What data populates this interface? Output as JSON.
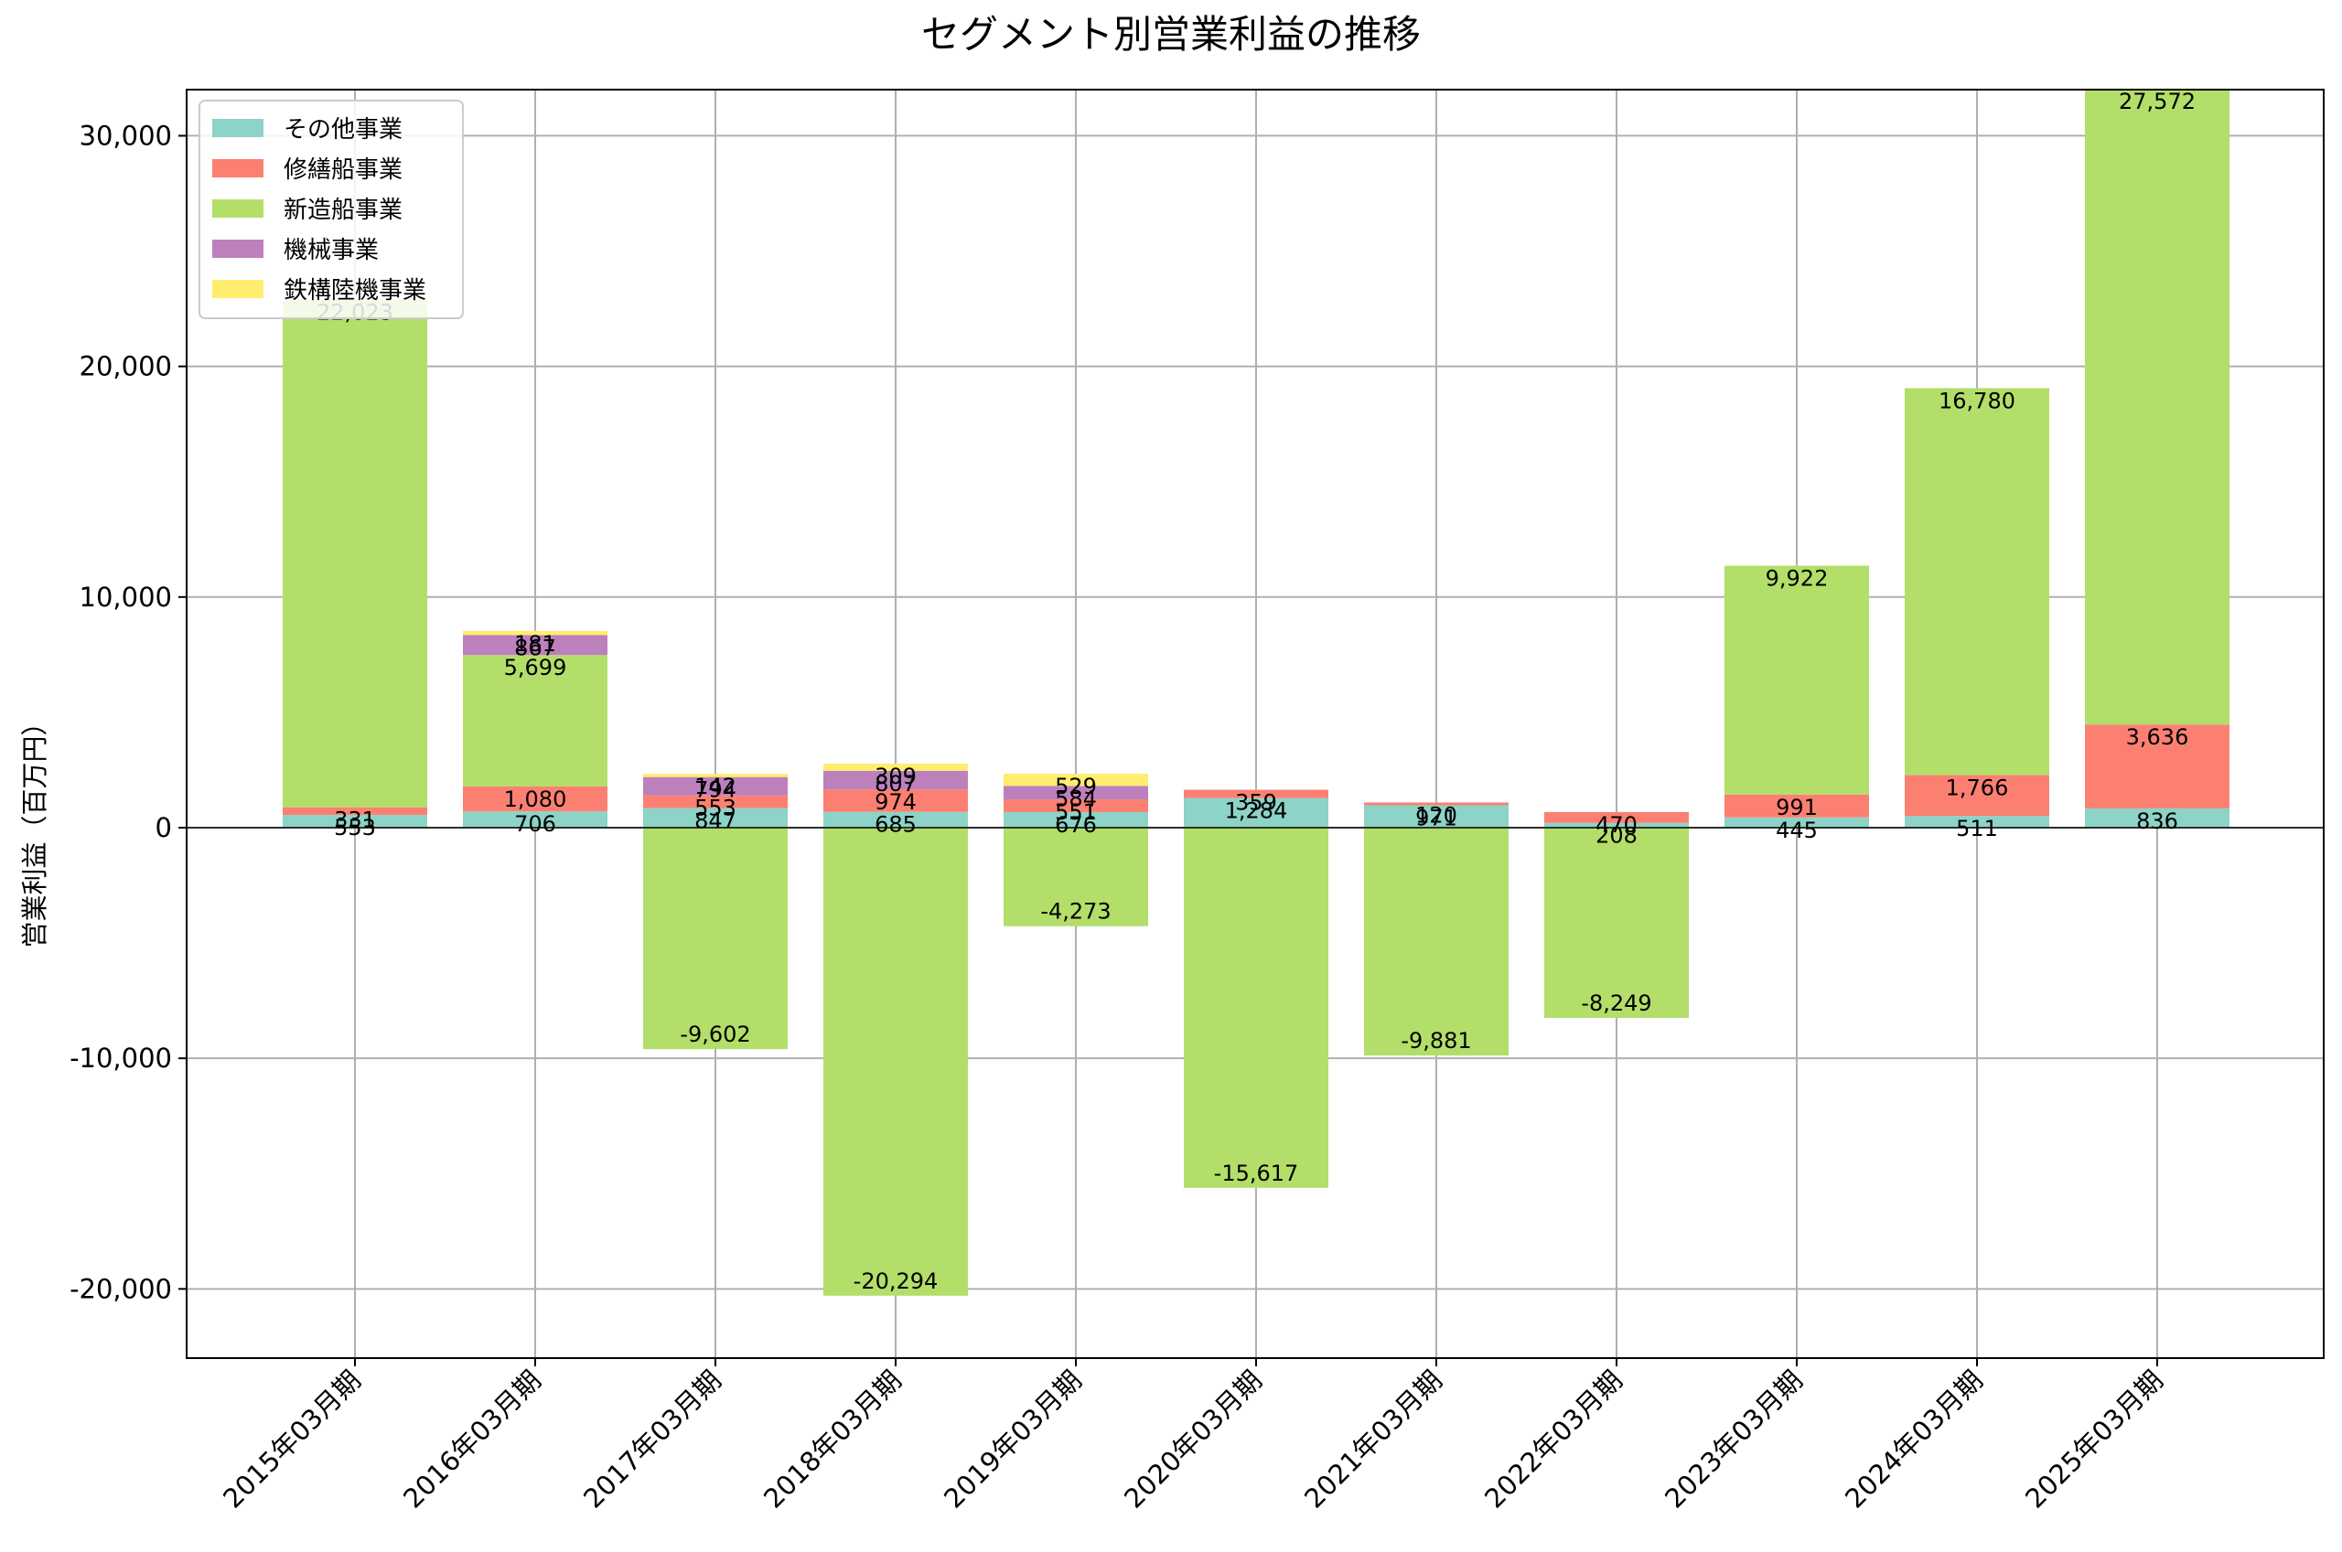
{
  "chart_data": {
    "type": "bar",
    "stacked": true,
    "title": "セグメント別営業利益の推移",
    "ylabel": "営業利益（百万円）",
    "xlabel": "",
    "ylim": [
      -23000,
      32000
    ],
    "yticks": [
      -20000,
      -10000,
      0,
      10000,
      20000,
      30000
    ],
    "ytick_labels": [
      "-20,000",
      "-10,000",
      "0",
      "10,000",
      "20,000",
      "30,000"
    ],
    "grid": true,
    "legend_position": "top-left",
    "categories": [
      "2015年03月期",
      "2016年03月期",
      "2017年03月期",
      "2018年03月期",
      "2019年03月期",
      "2020年03月期",
      "2021年03月期",
      "2022年03月期",
      "2023年03月期",
      "2024年03月期",
      "2025年03月期"
    ],
    "series": [
      {
        "name": "その他事業",
        "color": "#8dd3c7",
        "values": [
          553,
          706,
          847,
          685,
          676,
          1284,
          971,
          208,
          445,
          511,
          836
        ]
      },
      {
        "name": "修繕船事業",
        "color": "#fb8072",
        "values": [
          331,
          1080,
          553,
          974,
          551,
          359,
          120,
          470,
          991,
          1766,
          3636
        ]
      },
      {
        "name": "新造船事業",
        "color": "#b3de69",
        "values": [
          22023,
          5699,
          -9602,
          -20294,
          -4273,
          -15617,
          -9881,
          -8249,
          9922,
          16780,
          27572
        ]
      },
      {
        "name": "機械事業",
        "color": "#bc80bd",
        "values": [
          null,
          867,
          794,
          807,
          584,
          null,
          null,
          null,
          null,
          null,
          null
        ]
      },
      {
        "name": "鉄構陸機事業",
        "color": "#ffed6f",
        "values": [
          null,
          181,
          142,
          309,
          529,
          null,
          null,
          null,
          null,
          null,
          null
        ]
      }
    ]
  }
}
